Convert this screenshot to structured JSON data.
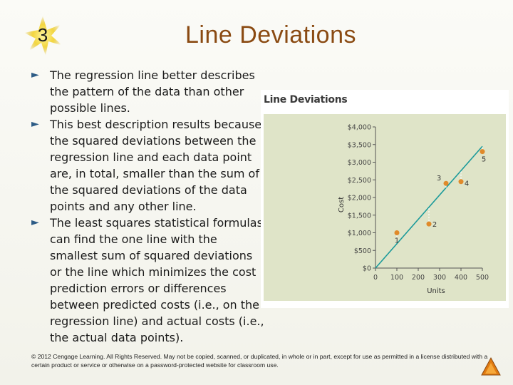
{
  "slide": {
    "number": "3",
    "title": "Line Deviations"
  },
  "bullets": [
    "The regression line better describes the pattern of the data than other possible lines.",
    "This best description results because the squared deviations between the regression line and each data point are, in total, smaller than the sum of the squared deviations of the data points and any other line.",
    "The least squares statistical formulas can find the one line with the smallest sum of squared deviations or the line which minimizes the cost prediction errors or differences between predicted costs (i.e., on the regression line) and actual costs (i.e., the actual data points)."
  ],
  "bullet_glyph": "►",
  "footer": "© 2012 Cengage Learning. All Rights Reserved. May not be copied, scanned, or duplicated, in whole or in part, except for use as permitted in a license distributed with a certain product or service or otherwise on a password-protected website for classroom use.",
  "colors": {
    "title": "#8a4a12",
    "bullet_arrow": "#2d5c86",
    "plot_background": "#dfe4c8",
    "regression_line": "#1a9a9a",
    "points": "#e08a2a",
    "deviation": "#ffffff"
  },
  "chart_data": {
    "type": "scatter",
    "title": "Line Deviations",
    "xlabel": "Units",
    "ylabel": "Cost",
    "xlim": [
      0,
      500
    ],
    "ylim": [
      0,
      4000
    ],
    "x_ticks": [
      "0",
      "100",
      "200",
      "300",
      "400",
      "500"
    ],
    "y_ticks": [
      "$0",
      "$500",
      "$1,000",
      "$1,500",
      "$2,000",
      "$2,500",
      "$3,000",
      "$3,500",
      "$4,000"
    ],
    "points": [
      {
        "label": "1",
        "x": 100,
        "y": 1000
      },
      {
        "label": "2",
        "x": 250,
        "y": 1250
      },
      {
        "label": "3",
        "x": 330,
        "y": 2400
      },
      {
        "label": "4",
        "x": 400,
        "y": 2450
      },
      {
        "label": "5",
        "x": 500,
        "y": 3300
      }
    ],
    "regression_line": {
      "x": [
        0,
        500
      ],
      "y": [
        0,
        3450
      ]
    }
  }
}
